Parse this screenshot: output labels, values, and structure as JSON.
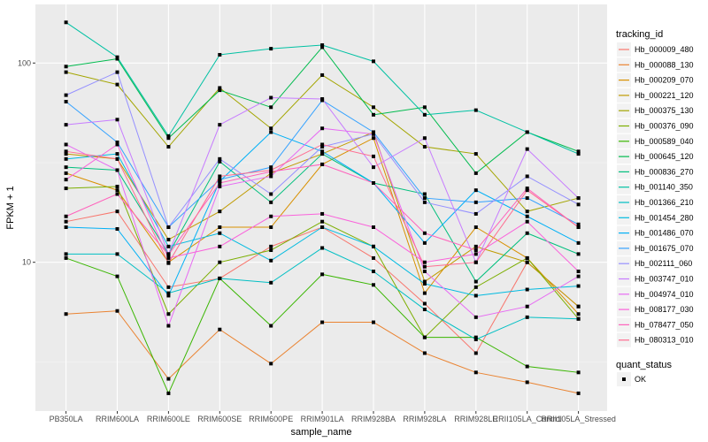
{
  "chart_data": {
    "type": "line",
    "title": "",
    "xlabel": "sample_name",
    "ylabel": "FPKM + 1",
    "yscale": "log10",
    "ylim": [
      1.79,
      197
    ],
    "yticks": [
      10,
      100
    ],
    "ytick_labels": [
      "10",
      "100"
    ],
    "categories": [
      "PB350LA",
      "RRIM600LA",
      "RRIM600LE",
      "RRIM600SE",
      "RRIM600PE",
      "RRIM901LA",
      "RRIM928BA",
      "RRIM928LA",
      "RRIM928LE",
      "RRII105LA_Control",
      "RRII105LA_Stressed"
    ],
    "legend_title": "tracking_id",
    "legend_position": "right",
    "shape_legend": {
      "title": "quant_status",
      "entries": [
        "OK"
      ]
    },
    "series": [
      {
        "name": "Hb_000009_480",
        "color": "#F8766D",
        "values": [
          16,
          18,
          7.5,
          8.3,
          12,
          15,
          10.5,
          6.2,
          3.5,
          10,
          6
        ]
      },
      {
        "name": "Hb_000088_130",
        "color": "#EA8331",
        "values": [
          5.5,
          5.7,
          2.6,
          4.6,
          3.1,
          5,
          5,
          3.5,
          2.8,
          2.5,
          2.2
        ]
      },
      {
        "name": "Hb_000209_070",
        "color": "#D89000",
        "values": [
          28,
          23,
          10,
          15,
          15,
          31,
          42,
          7,
          15,
          10.5,
          5.5
        ]
      },
      {
        "name": "Hb_000221_120",
        "color": "#C09B00",
        "values": [
          35,
          33,
          13,
          18,
          28,
          35,
          45,
          8,
          12,
          10,
          6
        ]
      },
      {
        "name": "Hb_000375_130",
        "color": "#A3A500",
        "values": [
          90,
          78,
          38,
          75,
          47,
          87,
          60,
          38,
          35,
          18,
          21
        ]
      },
      {
        "name": "Hb_000376_090",
        "color": "#7CAE00",
        "values": [
          23.5,
          24,
          5.5,
          10,
          11.5,
          16,
          12,
          4.2,
          7.5,
          10.5,
          5.2
        ]
      },
      {
        "name": "Hb_000589_040",
        "color": "#39B600",
        "values": [
          10.5,
          8.5,
          2.2,
          8.3,
          4.8,
          8.7,
          7.7,
          4.2,
          4.2,
          3,
          2.8
        ]
      },
      {
        "name": "Hb_000645_120",
        "color": "#00BB4E",
        "values": [
          96,
          105,
          42,
          73,
          60,
          120,
          55,
          60,
          28,
          45,
          36
        ]
      },
      {
        "name": "Hb_000836_270",
        "color": "#00BF7D",
        "values": [
          30,
          29,
          11,
          32,
          20,
          35,
          25,
          22,
          8,
          14,
          11
        ]
      },
      {
        "name": "Hb_001140_350",
        "color": "#00C1A3",
        "values": [
          160,
          107,
          43,
          110,
          118,
          123,
          102,
          55,
          58,
          45,
          35
        ]
      },
      {
        "name": "Hb_001366_210",
        "color": "#00BFC4",
        "values": [
          11,
          11,
          7,
          8.3,
          7.9,
          11.8,
          9,
          5.8,
          4.1,
          5.3,
          5.2
        ]
      },
      {
        "name": "Hb_001454_280",
        "color": "#00BAE0",
        "values": [
          33,
          35,
          12,
          14,
          10.2,
          15,
          12,
          7.8,
          6.8,
          7.3,
          7.6
        ]
      },
      {
        "name": "Hb_001486_070",
        "color": "#00B0F6",
        "values": [
          15,
          14.7,
          6.8,
          25.5,
          45,
          36,
          25,
          12.5,
          23,
          17,
          12.5
        ]
      },
      {
        "name": "Hb_001675_070",
        "color": "#35A2FF",
        "values": [
          64,
          40,
          15,
          26,
          30,
          65,
          45,
          21,
          20,
          21,
          15.5
        ]
      },
      {
        "name": "Hb_002111_060",
        "color": "#9590FF",
        "values": [
          69,
          90,
          15,
          33,
          22,
          38,
          44,
          20,
          17.5,
          27,
          19.5
        ]
      },
      {
        "name": "Hb_003747_010",
        "color": "#C77CFF",
        "values": [
          49,
          52,
          11,
          49,
          67,
          66,
          30,
          42,
          10,
          37,
          21
        ]
      },
      {
        "name": "Hb_004974_010",
        "color": "#E76BF3",
        "values": [
          39,
          29,
          4.8,
          24,
          27,
          47,
          44,
          9,
          5.3,
          6,
          8.5
        ]
      },
      {
        "name": "Hb_008177_030",
        "color": "#FA62DB",
        "values": [
          26,
          39,
          10.5,
          12,
          17,
          17.5,
          15,
          10,
          11,
          16,
          9
        ]
      },
      {
        "name": "Hb_078477_050",
        "color": "#FF62BC",
        "values": [
          17,
          22,
          10.9,
          25,
          28.5,
          31,
          25,
          14,
          11.5,
          23.5,
          15
        ]
      },
      {
        "name": "Hb_080313_010",
        "color": "#FF6C91",
        "values": [
          36,
          33,
          9.9,
          27,
          29,
          39,
          34,
          9.5,
          10,
          23,
          15
        ]
      }
    ]
  }
}
